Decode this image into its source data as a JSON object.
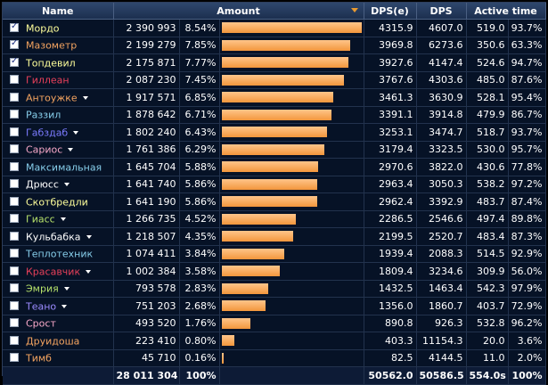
{
  "header": {
    "name": "Name",
    "amount": "Amount",
    "dpse": "DPS(e)",
    "dps": "DPS",
    "active_time": "Active time"
  },
  "rows": [
    {
      "name": "Мордо",
      "color": "#ffff9b",
      "checked": true,
      "dropdown": false,
      "amount": "2 390 993",
      "pct": "8.54%",
      "dpse": "4315.9",
      "dps": "4607.0",
      "active": "519.0",
      "active_pct": "93.7%",
      "bar_fraction": 1.0
    },
    {
      "name": "Мазометр",
      "color": "#f4a460",
      "checked": true,
      "dropdown": false,
      "amount": "2 199 279",
      "pct": "7.85%",
      "dpse": "3969.8",
      "dps": "6273.6",
      "active": "350.6",
      "active_pct": "63.3%",
      "bar_fraction": 0.92
    },
    {
      "name": "Топдевил",
      "color": "#ffff9b",
      "checked": true,
      "dropdown": false,
      "amount": "2 175 871",
      "pct": "7.77%",
      "dpse": "3927.6",
      "dps": "4147.4",
      "active": "524.6",
      "active_pct": "94.7%",
      "bar_fraction": 0.91
    },
    {
      "name": "Гиллеан",
      "color": "#e8405a",
      "checked": false,
      "dropdown": false,
      "amount": "2 087 230",
      "pct": "7.45%",
      "dpse": "3767.6",
      "dps": "4303.6",
      "active": "485.0",
      "active_pct": "87.6%",
      "bar_fraction": 0.873
    },
    {
      "name": "Антоужке",
      "color": "#f4a460",
      "checked": false,
      "dropdown": true,
      "amount": "1 917 571",
      "pct": "6.85%",
      "dpse": "3461.3",
      "dps": "3630.9",
      "active": "528.1",
      "active_pct": "95.4%",
      "bar_fraction": 0.802
    },
    {
      "name": "Раззил",
      "color": "#87ceeb",
      "checked": false,
      "dropdown": false,
      "amount": "1 878 642",
      "pct": "6.71%",
      "dpse": "3391.1",
      "dps": "3914.8",
      "active": "479.9",
      "active_pct": "86.7%",
      "bar_fraction": 0.786
    },
    {
      "name": "Габздаб",
      "color": "#7b7bff",
      "checked": false,
      "dropdown": true,
      "amount": "1 802 240",
      "pct": "6.43%",
      "dpse": "3253.1",
      "dps": "3474.7",
      "active": "518.7",
      "active_pct": "93.7%",
      "bar_fraction": 0.754
    },
    {
      "name": "Сариос",
      "color": "#f7a8c8",
      "checked": false,
      "dropdown": true,
      "amount": "1 761 386",
      "pct": "6.29%",
      "dpse": "3179.4",
      "dps": "3323.5",
      "active": "530.0",
      "active_pct": "95.7%",
      "bar_fraction": 0.737
    },
    {
      "name": "Максимальная",
      "color": "#87ceeb",
      "checked": false,
      "dropdown": false,
      "amount": "1 645 704",
      "pct": "5.88%",
      "dpse": "2970.6",
      "dps": "3822.0",
      "active": "430.6",
      "active_pct": "77.8%",
      "bar_fraction": 0.688
    },
    {
      "name": "Дрюсс",
      "color": "#ffffff",
      "checked": false,
      "dropdown": true,
      "amount": "1 641 740",
      "pct": "5.86%",
      "dpse": "2963.4",
      "dps": "3050.3",
      "active": "538.2",
      "active_pct": "97.2%",
      "bar_fraction": 0.687
    },
    {
      "name": "Скотбредли",
      "color": "#ffff9b",
      "checked": false,
      "dropdown": false,
      "amount": "1 641 190",
      "pct": "5.86%",
      "dpse": "2962.4",
      "dps": "3392.9",
      "active": "483.7",
      "active_pct": "87.4%",
      "bar_fraction": 0.686
    },
    {
      "name": "Гиасс",
      "color": "#b5e06a",
      "checked": false,
      "dropdown": true,
      "amount": "1 266 735",
      "pct": "4.52%",
      "dpse": "2286.5",
      "dps": "2546.6",
      "active": "497.4",
      "active_pct": "89.8%",
      "bar_fraction": 0.53
    },
    {
      "name": "Кульбабка",
      "color": "#ffffff",
      "checked": false,
      "dropdown": true,
      "amount": "1 218 507",
      "pct": "4.35%",
      "dpse": "2199.5",
      "dps": "2520.7",
      "active": "483.4",
      "active_pct": "87.3%",
      "bar_fraction": 0.51
    },
    {
      "name": "Теплотехник",
      "color": "#87ceeb",
      "checked": false,
      "dropdown": false,
      "amount": "1 074 411",
      "pct": "3.84%",
      "dpse": "1939.4",
      "dps": "2088.3",
      "active": "514.5",
      "active_pct": "92.9%",
      "bar_fraction": 0.449
    },
    {
      "name": "Красавчик",
      "color": "#e8405a",
      "checked": false,
      "dropdown": true,
      "amount": "1 002 384",
      "pct": "3.58%",
      "dpse": "1809.4",
      "dps": "3234.6",
      "active": "309.9",
      "active_pct": "56.0%",
      "bar_fraction": 0.419
    },
    {
      "name": "Эмрия",
      "color": "#b5e06a",
      "checked": false,
      "dropdown": true,
      "amount": "793 578",
      "pct": "2.83%",
      "dpse": "1432.5",
      "dps": "1463.4",
      "active": "542.3",
      "active_pct": "97.9%",
      "bar_fraction": 0.332
    },
    {
      "name": "Теано",
      "color": "#9b8bff",
      "checked": false,
      "dropdown": true,
      "amount": "751 203",
      "pct": "2.68%",
      "dpse": "1356.0",
      "dps": "1860.7",
      "active": "403.7",
      "active_pct": "72.9%",
      "bar_fraction": 0.314
    },
    {
      "name": "Срост",
      "color": "#f7a8c8",
      "checked": false,
      "dropdown": false,
      "amount": "493 520",
      "pct": "1.76%",
      "dpse": "890.8",
      "dps": "926.3",
      "active": "532.8",
      "active_pct": "96.2%",
      "bar_fraction": 0.206
    },
    {
      "name": "Друидоша",
      "color": "#f4a460",
      "checked": false,
      "dropdown": false,
      "amount": "223 410",
      "pct": "0.80%",
      "dpse": "403.3",
      "dps": "11154.3",
      "active": "20.0",
      "active_pct": "3.6%",
      "bar_fraction": 0.093
    },
    {
      "name": "Тимб",
      "color": "#f4a460",
      "checked": false,
      "dropdown": false,
      "amount": "45 710",
      "pct": "0.16%",
      "dpse": "82.5",
      "dps": "4144.5",
      "active": "11.0",
      "active_pct": "2.0%",
      "bar_fraction": 0.019
    }
  ],
  "total": {
    "name": "",
    "amount": "28 011 304",
    "pct": "100%",
    "dpse": "50562.0",
    "dps": "50586.5",
    "active": "554.0s",
    "active_pct": "100%"
  }
}
